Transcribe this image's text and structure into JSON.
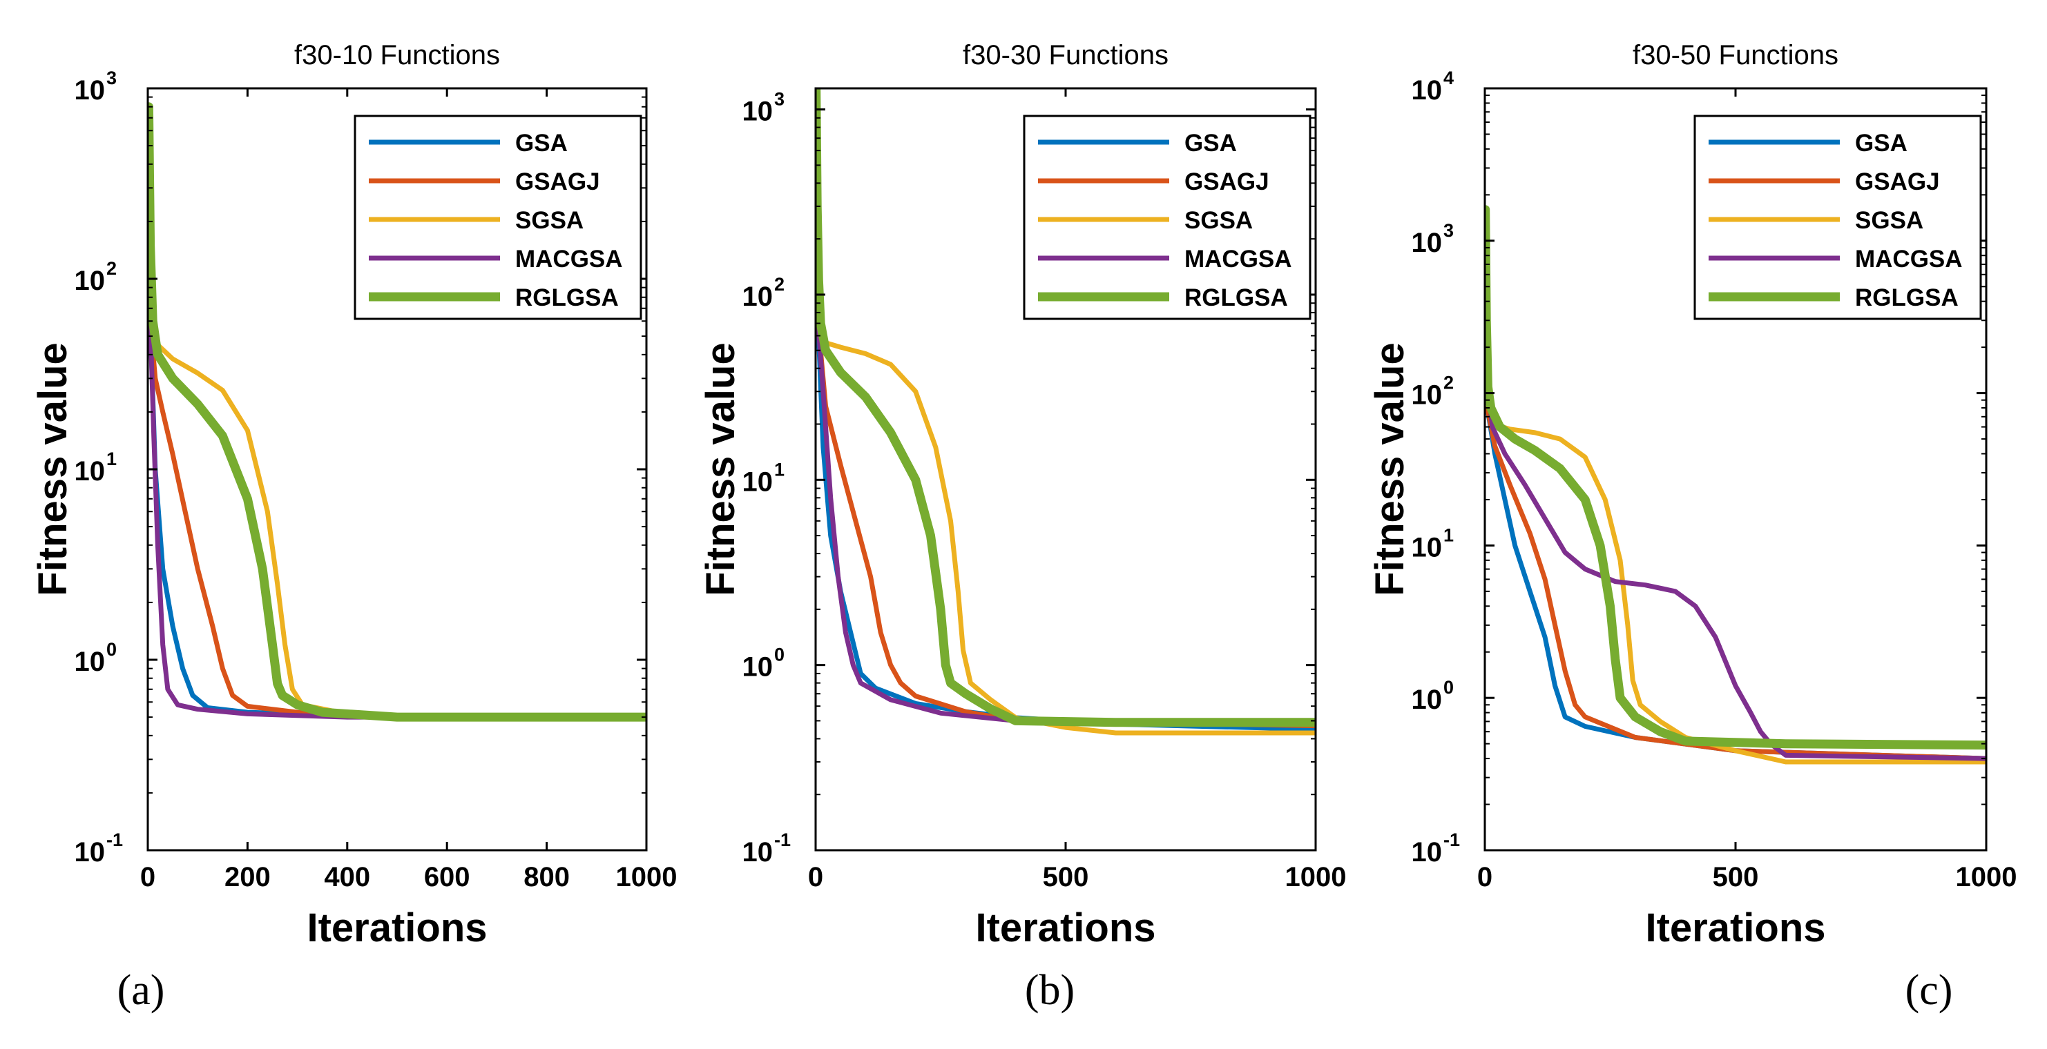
{
  "chart_data": [
    {
      "type": "line",
      "panel_label": "(a)",
      "title": "f30-10 Functions",
      "xlabel": "Iterations",
      "ylabel": "Fitness value",
      "yscale": "log",
      "xlim": [
        0,
        1000
      ],
      "ylim": [
        0.1,
        1000
      ],
      "xticks": [
        "0",
        "200",
        "400",
        "600",
        "800",
        "1000"
      ],
      "yticks": [
        {
          "base": "10",
          "exp": "-1"
        },
        {
          "base": "10",
          "exp": "0"
        },
        {
          "base": "10",
          "exp": "1"
        },
        {
          "base": "10",
          "exp": "2"
        },
        {
          "base": "10",
          "exp": "3"
        }
      ],
      "legend_position": "top-right",
      "series": [
        {
          "name": "GSA",
          "color": "#0072BD",
          "x": [
            5,
            15,
            30,
            50,
            70,
            90,
            120,
            200,
            300,
            500,
            1000
          ],
          "y": [
            60,
            10,
            3,
            1.5,
            0.9,
            0.65,
            0.56,
            0.53,
            0.52,
            0.5,
            0.5
          ]
        },
        {
          "name": "GSAGJ",
          "color": "#D95319",
          "x": [
            5,
            15,
            30,
            50,
            75,
            100,
            130,
            150,
            170,
            200,
            300,
            400,
            1000
          ],
          "y": [
            60,
            30,
            20,
            12,
            6,
            3,
            1.5,
            0.9,
            0.65,
            0.57,
            0.53,
            0.51,
            0.5
          ]
        },
        {
          "name": "SGSA",
          "color": "#EDB120",
          "x": [
            5,
            20,
            50,
            100,
            150,
            200,
            240,
            260,
            275,
            290,
            310,
            400,
            500,
            1000
          ],
          "y": [
            80,
            45,
            38,
            32,
            26,
            16,
            6,
            2.5,
            1.2,
            0.7,
            0.58,
            0.52,
            0.5,
            0.5
          ]
        },
        {
          "name": "MACGSA",
          "color": "#7E2F8E",
          "x": [
            5,
            12,
            20,
            30,
            40,
            60,
            100,
            200,
            400,
            1000
          ],
          "y": [
            60,
            15,
            4,
            1.2,
            0.7,
            0.58,
            0.55,
            0.52,
            0.5,
            0.5
          ]
        },
        {
          "name": "RGLGSA",
          "color": "#77AC30",
          "x": [
            2,
            5,
            10,
            20,
            50,
            100,
            150,
            200,
            230,
            250,
            260,
            270,
            300,
            350,
            500,
            1000
          ],
          "y": [
            800,
            150,
            60,
            40,
            30,
            22,
            15,
            7,
            3,
            1.2,
            0.75,
            0.65,
            0.58,
            0.53,
            0.5,
            0.5
          ]
        }
      ]
    },
    {
      "type": "line",
      "panel_label": "(b)",
      "title": "f30-30 Functions",
      "xlabel": "Iterations",
      "ylabel": "Fitness value",
      "yscale": "log",
      "xlim": [
        0,
        1000
      ],
      "ylim": [
        0.1,
        1300
      ],
      "xticks": [
        "0",
        "500",
        "1000"
      ],
      "yticks": [
        {
          "base": "10",
          "exp": "-1"
        },
        {
          "base": "10",
          "exp": "0"
        },
        {
          "base": "10",
          "exp": "1"
        },
        {
          "base": "10",
          "exp": "2"
        },
        {
          "base": "10",
          "exp": "3"
        }
      ],
      "legend_position": "top-right",
      "series": [
        {
          "name": "GSA",
          "color": "#0072BD",
          "x": [
            5,
            15,
            30,
            50,
            70,
            90,
            120,
            200,
            300,
            400,
            600,
            1000
          ],
          "y": [
            70,
            15,
            5,
            2.5,
            1.5,
            0.9,
            0.75,
            0.62,
            0.56,
            0.52,
            0.48,
            0.45
          ]
        },
        {
          "name": "GSAGJ",
          "color": "#D95319",
          "x": [
            5,
            20,
            50,
            80,
            110,
            130,
            150,
            170,
            200,
            300,
            400,
            1000
          ],
          "y": [
            70,
            25,
            12,
            6,
            3,
            1.5,
            1,
            0.8,
            0.68,
            0.56,
            0.5,
            0.47
          ]
        },
        {
          "name": "SGSA",
          "color": "#EDB120",
          "x": [
            5,
            20,
            50,
            100,
            150,
            200,
            240,
            270,
            285,
            295,
            310,
            350,
            400,
            500,
            600,
            1000
          ],
          "y": [
            80,
            55,
            52,
            48,
            42,
            30,
            15,
            6,
            2.5,
            1.2,
            0.8,
            0.65,
            0.52,
            0.46,
            0.43,
            0.43
          ]
        },
        {
          "name": "MACGSA",
          "color": "#7E2F8E",
          "x": [
            5,
            15,
            30,
            45,
            60,
            75,
            90,
            150,
            250,
            400,
            1000
          ],
          "y": [
            70,
            30,
            8,
            3,
            1.5,
            1,
            0.8,
            0.65,
            0.55,
            0.5,
            0.48
          ]
        },
        {
          "name": "RGLGSA",
          "color": "#77AC30",
          "x": [
            1,
            3,
            6,
            10,
            20,
            50,
            100,
            150,
            200,
            230,
            250,
            260,
            270,
            300,
            350,
            400,
            600,
            1000
          ],
          "y": [
            1300,
            300,
            120,
            70,
            50,
            38,
            28,
            18,
            10,
            5,
            2,
            1,
            0.8,
            0.7,
            0.58,
            0.5,
            0.49,
            0.49
          ]
        }
      ]
    },
    {
      "type": "line",
      "panel_label": "(c)",
      "title": "f30-50 Functions",
      "xlabel": "Iterations",
      "ylabel": "Fitness value",
      "yscale": "log",
      "xlim": [
        0,
        1000
      ],
      "ylim": [
        0.1,
        10000
      ],
      "xticks": [
        "0",
        "500",
        "1000"
      ],
      "yticks": [
        {
          "base": "10",
          "exp": "-1"
        },
        {
          "base": "10",
          "exp": "0"
        },
        {
          "base": "10",
          "exp": "1"
        },
        {
          "base": "10",
          "exp": "2"
        },
        {
          "base": "10",
          "exp": "3"
        },
        {
          "base": "10",
          "exp": "4"
        }
      ],
      "legend_position": "top-right",
      "series": [
        {
          "name": "GSA",
          "color": "#0072BD",
          "x": [
            5,
            20,
            40,
            60,
            90,
            120,
            140,
            160,
            200,
            300,
            500,
            1000
          ],
          "y": [
            80,
            40,
            20,
            10,
            5,
            2.5,
            1.2,
            0.75,
            0.65,
            0.55,
            0.45,
            0.4
          ]
        },
        {
          "name": "GSAGJ",
          "color": "#D95319",
          "x": [
            5,
            20,
            50,
            90,
            120,
            140,
            160,
            180,
            200,
            300,
            500,
            1000
          ],
          "y": [
            80,
            45,
            25,
            12,
            6,
            3,
            1.5,
            0.9,
            0.75,
            0.55,
            0.45,
            0.4
          ]
        },
        {
          "name": "SGSA",
          "color": "#EDB120",
          "x": [
            5,
            20,
            50,
            100,
            150,
            200,
            240,
            270,
            285,
            295,
            310,
            350,
            400,
            500,
            600,
            1000
          ],
          "y": [
            90,
            62,
            58,
            55,
            50,
            38,
            20,
            8,
            3,
            1.3,
            0.9,
            0.7,
            0.55,
            0.45,
            0.38,
            0.38
          ]
        },
        {
          "name": "MACGSA",
          "color": "#7E2F8E",
          "x": [
            2,
            5,
            15,
            40,
            80,
            120,
            160,
            200,
            260,
            320,
            380,
            420,
            460,
            500,
            530,
            550,
            570,
            600,
            1000
          ],
          "y": [
            1000,
            120,
            60,
            40,
            25,
            15,
            9,
            7,
            5.8,
            5.5,
            5,
            4,
            2.5,
            1.2,
            0.8,
            0.6,
            0.5,
            0.42,
            0.4
          ]
        },
        {
          "name": "RGLGSA",
          "color": "#77AC30",
          "x": [
            1,
            3,
            6,
            12,
            30,
            60,
            100,
            150,
            200,
            230,
            250,
            260,
            270,
            300,
            350,
            400,
            600,
            1000
          ],
          "y": [
            1600,
            300,
            110,
            80,
            60,
            50,
            42,
            32,
            20,
            10,
            4,
            1.8,
            1,
            0.75,
            0.6,
            0.52,
            0.5,
            0.49
          ]
        }
      ]
    }
  ]
}
